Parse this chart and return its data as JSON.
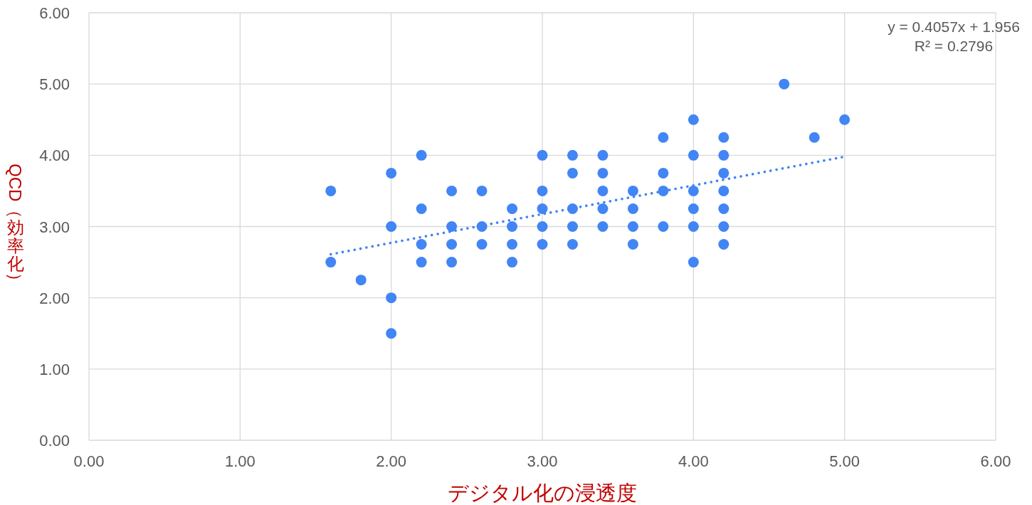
{
  "chart_data": {
    "type": "scatter",
    "xlabel": "デジタル化の浸透度",
    "ylabel": "QCD（効率化）",
    "xlim": [
      0,
      6
    ],
    "ylim": [
      0,
      6
    ],
    "xticks": [
      {
        "value": 0,
        "label": "0.00"
      },
      {
        "value": 1,
        "label": "1.00"
      },
      {
        "value": 2,
        "label": "2.00"
      },
      {
        "value": 3,
        "label": "3.00"
      },
      {
        "value": 4,
        "label": "4.00"
      },
      {
        "value": 5,
        "label": "5.00"
      },
      {
        "value": 6,
        "label": "6.00"
      }
    ],
    "yticks": [
      {
        "value": 0,
        "label": "0.00"
      },
      {
        "value": 1,
        "label": "1.00"
      },
      {
        "value": 2,
        "label": "2.00"
      },
      {
        "value": 3,
        "label": "3.00"
      },
      {
        "value": 4,
        "label": "4.00"
      },
      {
        "value": 5,
        "label": "5.00"
      },
      {
        "value": 6,
        "label": "6.00"
      }
    ],
    "grid": true,
    "marker": "circle",
    "series": [
      {
        "type": "scatter",
        "color": "#4285f4",
        "x": [
          1.6,
          1.6,
          1.8,
          2.0,
          2.0,
          2.0,
          2.0,
          2.2,
          2.2,
          2.2,
          2.2,
          2.4,
          2.4,
          2.4,
          2.4,
          2.6,
          2.6,
          2.6,
          2.8,
          2.8,
          2.8,
          2.8,
          3.0,
          3.0,
          3.0,
          3.0,
          3.0,
          3.2,
          3.2,
          3.2,
          3.2,
          3.2,
          3.4,
          3.4,
          3.4,
          3.4,
          3.4,
          3.6,
          3.6,
          3.6,
          3.6,
          3.8,
          3.8,
          3.8,
          3.8,
          4.0,
          4.0,
          4.0,
          4.0,
          4.0,
          4.0,
          4.2,
          4.2,
          4.2,
          4.2,
          4.2,
          4.2,
          4.2,
          4.6,
          4.8,
          5.0
        ],
        "values": [
          3.5,
          2.5,
          2.25,
          3.75,
          3.0,
          2.0,
          1.5,
          4.0,
          3.25,
          2.75,
          2.5,
          3.5,
          3.0,
          2.75,
          2.5,
          3.5,
          3.0,
          2.75,
          3.25,
          3.0,
          2.75,
          2.5,
          4.0,
          3.5,
          3.25,
          3.0,
          2.75,
          4.0,
          3.75,
          3.25,
          3.0,
          2.75,
          4.0,
          3.75,
          3.5,
          3.25,
          3.0,
          3.5,
          3.25,
          3.0,
          2.75,
          4.25,
          3.75,
          3.5,
          3.0,
          4.5,
          4.0,
          3.5,
          3.25,
          3.0,
          2.5,
          4.25,
          4.0,
          3.75,
          3.5,
          3.25,
          3.0,
          2.75,
          5.0,
          4.25,
          4.5
        ]
      },
      {
        "type": "line",
        "color": "#4285f4",
        "line_style": "dotted",
        "marker": "none",
        "x": [
          1.6,
          5.0
        ],
        "values": [
          2.61,
          3.98
        ]
      }
    ],
    "annotations": [
      "y = 0.4057x + 1.956",
      "R² = 0.2796"
    ]
  }
}
